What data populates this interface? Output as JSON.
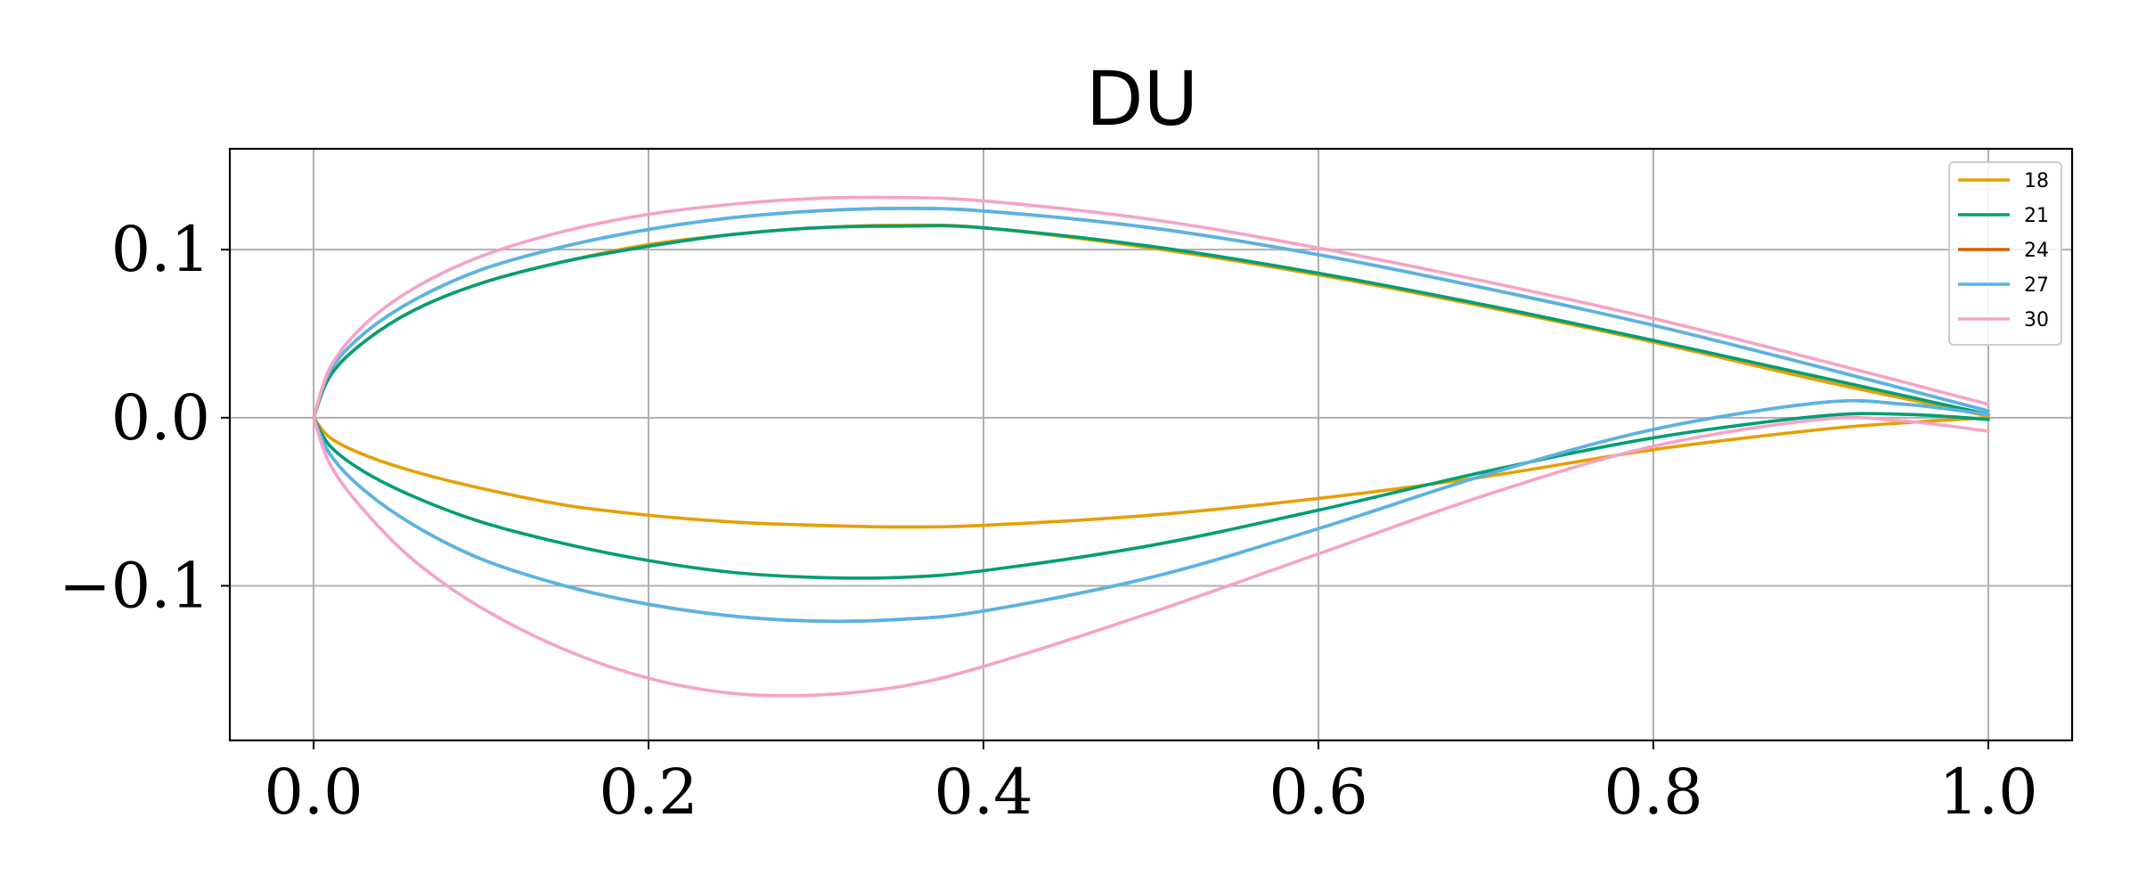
{
  "chart_data": {
    "type": "line",
    "title": "DU",
    "xlabel": "",
    "ylabel": "",
    "xlim": [
      -0.05,
      1.05
    ],
    "ylim": [
      -0.192,
      0.16
    ],
    "x_ticks": [
      0.0,
      0.2,
      0.4,
      0.6,
      0.8,
      1.0
    ],
    "x_tick_labels": [
      "0.0",
      "0.2",
      "0.4",
      "0.6",
      "0.8",
      "1.0"
    ],
    "y_ticks": [
      -0.1,
      0.0,
      0.1
    ],
    "y_tick_labels": [
      "−0.1",
      "0.0",
      "0.1"
    ],
    "grid": true,
    "legend_position": "top-right",
    "series": [
      {
        "name": "18",
        "color": "#E69F00",
        "upper": {
          "x": [
            0.0,
            0.01,
            0.03,
            0.06,
            0.1,
            0.15,
            0.2,
            0.25,
            0.3,
            0.35,
            0.4,
            0.5,
            0.6,
            0.7,
            0.8,
            0.9,
            1.0
          ],
          "y": [
            0.0,
            0.025,
            0.045,
            0.064,
            0.08,
            0.093,
            0.103,
            0.109,
            0.113,
            0.1145,
            0.113,
            0.101,
            0.085,
            0.066,
            0.045,
            0.022,
            0.001
          ]
        },
        "lower": {
          "x": [
            0.0,
            0.01,
            0.03,
            0.06,
            0.1,
            0.15,
            0.2,
            0.25,
            0.3,
            0.35,
            0.4,
            0.5,
            0.6,
            0.7,
            0.8,
            0.9,
            0.95,
            1.0
          ],
          "y": [
            0.0,
            -0.012,
            -0.022,
            -0.032,
            -0.042,
            -0.052,
            -0.058,
            -0.062,
            -0.064,
            -0.065,
            -0.064,
            -0.058,
            -0.048,
            -0.035,
            -0.019,
            -0.007,
            -0.003,
            0.0
          ]
        }
      },
      {
        "name": "21",
        "color": "#009E73",
        "upper": {
          "x": [
            0.0,
            0.01,
            0.03,
            0.06,
            0.1,
            0.15,
            0.2,
            0.25,
            0.3,
            0.35,
            0.4,
            0.5,
            0.6,
            0.7,
            0.8,
            0.9,
            1.0
          ],
          "y": [
            0.0,
            0.025,
            0.045,
            0.064,
            0.08,
            0.093,
            0.102,
            0.109,
            0.113,
            0.114,
            0.113,
            0.102,
            0.086,
            0.067,
            0.046,
            0.024,
            0.002
          ]
        },
        "lower": {
          "x": [
            0.0,
            0.01,
            0.03,
            0.06,
            0.1,
            0.15,
            0.2,
            0.25,
            0.3,
            0.35,
            0.4,
            0.5,
            0.6,
            0.7,
            0.8,
            0.9,
            0.95,
            1.0
          ],
          "y": [
            0.0,
            -0.017,
            -0.032,
            -0.047,
            -0.062,
            -0.075,
            -0.085,
            -0.092,
            -0.095,
            -0.095,
            -0.091,
            -0.076,
            -0.055,
            -0.032,
            -0.012,
            0.001,
            0.002,
            -0.001
          ]
        }
      },
      {
        "name": "24",
        "color": "#D55E00",
        "upper": {
          "x": [
            0.0,
            0.01,
            0.03,
            0.06,
            0.1,
            0.15,
            0.2,
            0.25,
            0.3,
            0.35,
            0.4,
            0.5,
            0.6,
            0.7,
            0.8,
            0.9,
            1.0
          ],
          "y": [
            0.0,
            0.028,
            0.05,
            0.07,
            0.088,
            0.102,
            0.112,
            0.119,
            0.123,
            0.1245,
            0.123,
            0.113,
            0.097,
            0.077,
            0.055,
            0.03,
            0.004
          ]
        },
        "lower": {
          "x": [
            0.0,
            0.01,
            0.03,
            0.06,
            0.1,
            0.15,
            0.2,
            0.25,
            0.3,
            0.35,
            0.4,
            0.5,
            0.6,
            0.7,
            0.8,
            0.9,
            0.95,
            1.0
          ],
          "y": [
            0.0,
            -0.022,
            -0.043,
            -0.064,
            -0.084,
            -0.1,
            -0.111,
            -0.118,
            -0.121,
            -0.12,
            -0.115,
            -0.095,
            -0.066,
            -0.034,
            -0.007,
            0.009,
            0.008,
            0.002
          ]
        }
      },
      {
        "name": "27",
        "color": "#56B4E9",
        "upper": {
          "x": [
            0.0,
            0.01,
            0.03,
            0.06,
            0.1,
            0.15,
            0.2,
            0.25,
            0.3,
            0.35,
            0.4,
            0.5,
            0.6,
            0.7,
            0.8,
            0.9,
            1.0
          ],
          "y": [
            0.0,
            0.028,
            0.05,
            0.07,
            0.088,
            0.102,
            0.112,
            0.119,
            0.123,
            0.1245,
            0.123,
            0.113,
            0.097,
            0.077,
            0.055,
            0.03,
            0.004
          ]
        },
        "lower": {
          "x": [
            0.0,
            0.01,
            0.03,
            0.06,
            0.1,
            0.15,
            0.2,
            0.25,
            0.3,
            0.35,
            0.4,
            0.5,
            0.6,
            0.7,
            0.8,
            0.9,
            0.95,
            1.0
          ],
          "y": [
            0.0,
            -0.022,
            -0.043,
            -0.064,
            -0.084,
            -0.1,
            -0.111,
            -0.118,
            -0.121,
            -0.12,
            -0.115,
            -0.095,
            -0.066,
            -0.034,
            -0.007,
            0.009,
            0.008,
            0.002
          ]
        }
      },
      {
        "name": "30",
        "color": "#F5A3C7",
        "upper": {
          "x": [
            0.0,
            0.01,
            0.03,
            0.06,
            0.1,
            0.15,
            0.2,
            0.25,
            0.3,
            0.35,
            0.4,
            0.5,
            0.6,
            0.7,
            0.8,
            0.9,
            1.0
          ],
          "y": [
            0.0,
            0.03,
            0.055,
            0.077,
            0.096,
            0.111,
            0.121,
            0.127,
            0.1305,
            0.131,
            0.129,
            0.118,
            0.101,
            0.081,
            0.059,
            0.034,
            0.008
          ]
        },
        "lower": {
          "x": [
            0.0,
            0.01,
            0.03,
            0.06,
            0.1,
            0.15,
            0.2,
            0.25,
            0.3,
            0.35,
            0.4,
            0.5,
            0.6,
            0.7,
            0.8,
            0.9,
            0.95,
            1.0
          ],
          "y": [
            0.0,
            -0.028,
            -0.055,
            -0.085,
            -0.113,
            -0.138,
            -0.155,
            -0.164,
            -0.165,
            -0.16,
            -0.148,
            -0.116,
            -0.081,
            -0.046,
            -0.017,
            -0.001,
            -0.002,
            -0.008
          ]
        }
      }
    ]
  }
}
